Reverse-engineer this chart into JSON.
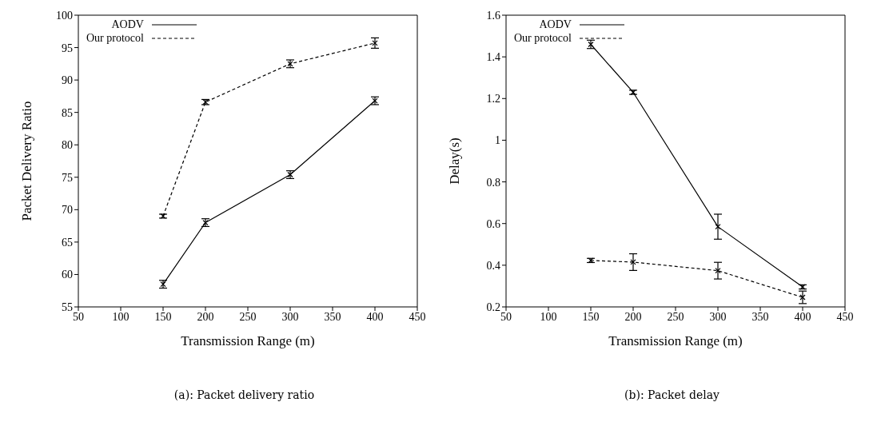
{
  "chart_data": [
    {
      "type": "line",
      "xlabel": "Transmission Range (m)",
      "ylabel": "Packet Delivery Ratio",
      "x": [
        150,
        200,
        300,
        400
      ],
      "xlim": [
        50,
        450
      ],
      "xticks": [
        50,
        100,
        150,
        200,
        250,
        300,
        350,
        400,
        450
      ],
      "ylim": [
        55,
        100
      ],
      "yticks": [
        55,
        60,
        65,
        70,
        75,
        80,
        85,
        90,
        95,
        100
      ],
      "legend": "top left",
      "marker": "cross",
      "series": [
        {
          "name": "AODV",
          "color": "#000000",
          "line_style": "solid",
          "values": [
            58.5,
            68.0,
            75.4,
            86.8
          ],
          "errors": [
            0.6,
            0.6,
            0.6,
            0.6
          ]
        },
        {
          "name": "Our protocol",
          "color": "#000000",
          "line_style": "dashed",
          "values": [
            69.0,
            86.6,
            92.5,
            95.7
          ],
          "errors": [
            0.3,
            0.4,
            0.6,
            0.8
          ]
        }
      ],
      "annotations": [
        "(a): Packet delivery ratio"
      ]
    },
    {
      "type": "line",
      "xlabel": "Transmission Range (m)",
      "ylabel": "Delay(s)",
      "x": [
        150,
        200,
        300,
        400
      ],
      "xlim": [
        50,
        450
      ],
      "xticks": [
        50,
        100,
        150,
        200,
        250,
        300,
        350,
        400,
        450
      ],
      "ylim": [
        0.2,
        1.6
      ],
      "yticks": [
        0.2,
        0.4,
        0.6,
        0.8,
        1,
        1.2,
        1.4,
        1.6
      ],
      "legend": "top left",
      "marker": "cross",
      "series": [
        {
          "name": "AODV",
          "color": "#000000",
          "line_style": "solid",
          "values": [
            1.46,
            1.23,
            0.585,
            0.296
          ],
          "errors": [
            0.02,
            0.01,
            0.06,
            0.01
          ]
        },
        {
          "name": "Our protocol",
          "color": "#000000",
          "line_style": "dashed",
          "values": [
            0.423,
            0.415,
            0.374,
            0.246
          ],
          "errors": [
            0.01,
            0.04,
            0.04,
            0.03
          ]
        }
      ],
      "annotations": [
        "(b): Packet delay"
      ]
    }
  ]
}
